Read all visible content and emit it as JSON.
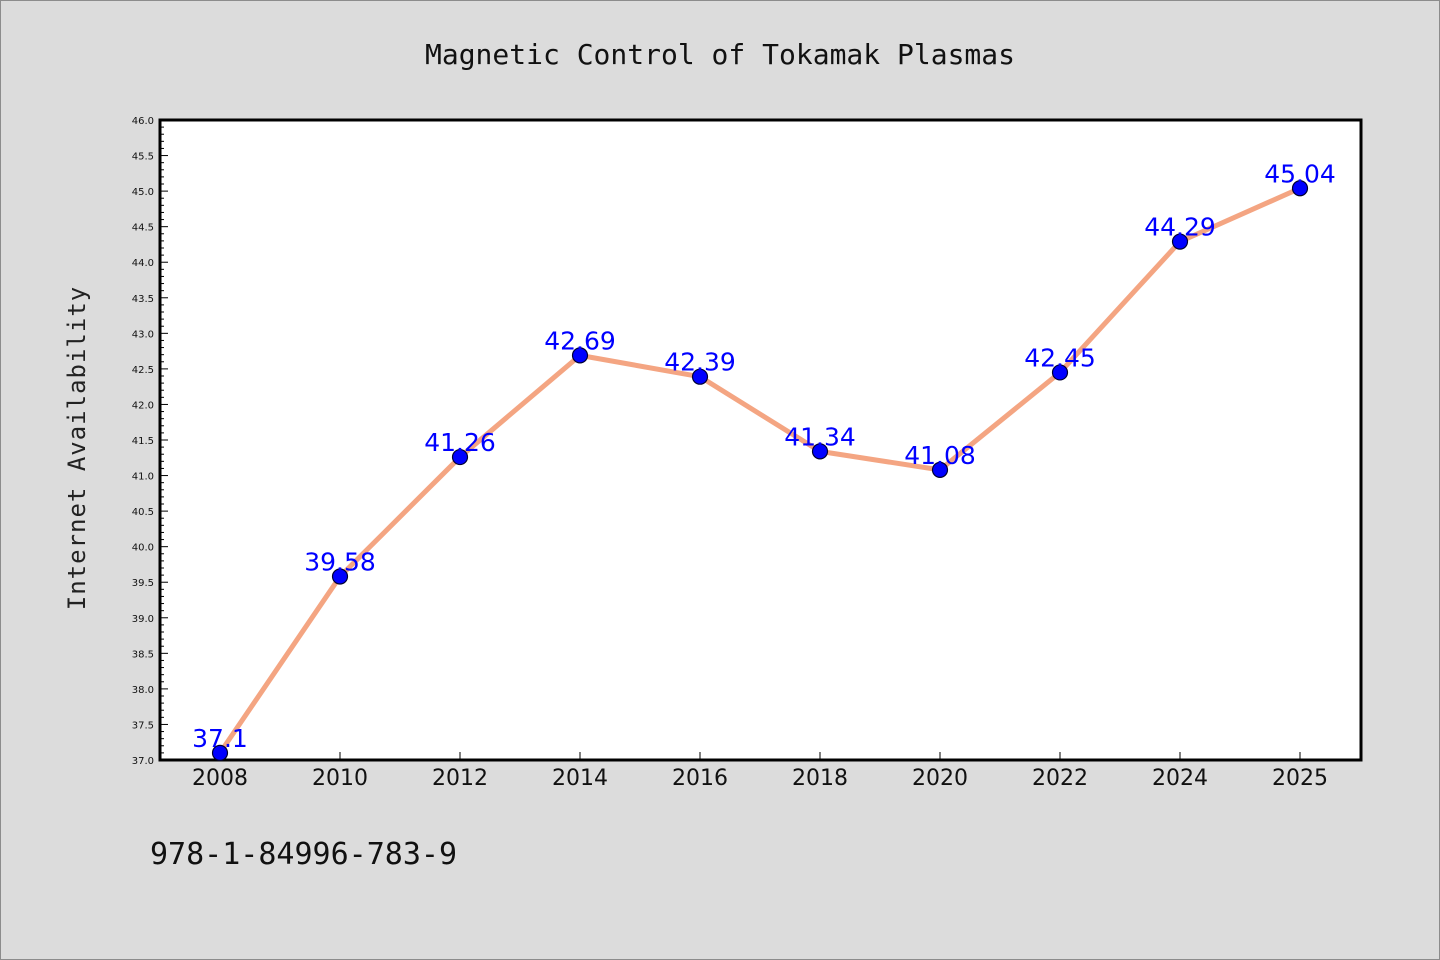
{
  "chart_data": {
    "type": "line",
    "title": "Magnetic Control of Tokamak Plasmas",
    "xlabel": "",
    "ylabel": "Internet Availability",
    "categories": [
      "2008",
      "2010",
      "2012",
      "2014",
      "2016",
      "2018",
      "2020",
      "2022",
      "2024",
      "2025"
    ],
    "values": [
      37.1,
      39.58,
      41.26,
      42.69,
      42.39,
      41.34,
      41.08,
      42.45,
      44.29,
      45.04
    ],
    "data_labels": [
      "37.1",
      "39.58",
      "41.26",
      "42.69",
      "42.39",
      "41.34",
      "41.08",
      "42.45",
      "44.29",
      "45.04"
    ],
    "ylim": [
      37.0,
      46.0
    ],
    "yticks": [
      "37.0",
      "37.5",
      "38.0",
      "38.5",
      "39.0",
      "39.5",
      "40.0",
      "40.5",
      "41.0",
      "41.5",
      "42.0",
      "42.5",
      "43.0",
      "43.5",
      "44.0",
      "44.5",
      "45.0",
      "45.5",
      "46.0"
    ],
    "grid": false,
    "legend": "none",
    "line_color": "#f4a582",
    "marker_color": "#0000ff",
    "label_color": "#0000ff"
  },
  "footer": {
    "isbn": "978-1-84996-783-9"
  }
}
